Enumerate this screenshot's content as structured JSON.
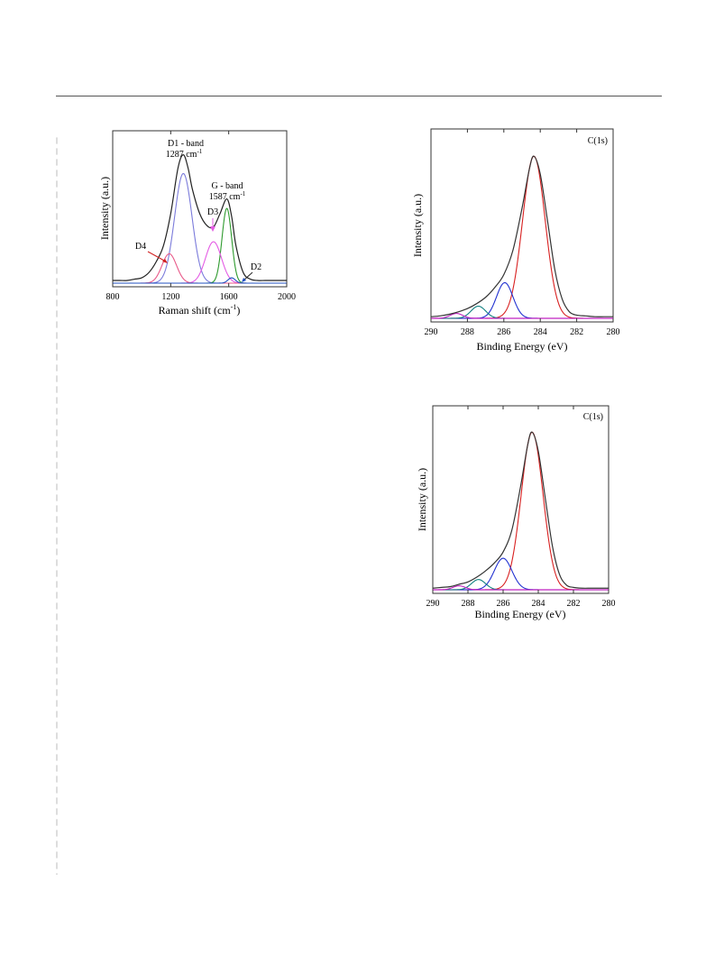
{
  "page": {
    "rule": true
  },
  "chart_data": [
    {
      "id": "raman",
      "type": "line",
      "xlabel": "Raman shift (cm",
      "xlabel_sup": "-1",
      "xlabel_end": ")",
      "ylabel": "Intensity (a.u.)",
      "xlim": [
        800,
        2000
      ],
      "xticks": [
        "800",
        "1200",
        "1600",
        "2000"
      ],
      "reversed_x": false,
      "annotations": {
        "d1_title": "D1 - band",
        "d1_value": "1287 cm",
        "d1_sup": "-1",
        "g_title": "G - band",
        "g_value": "1587 cm",
        "g_sup": "-1",
        "d3": "D3",
        "d4": "D4",
        "d2": "D2"
      },
      "components": [
        {
          "center": 1287,
          "amp": 0.82,
          "width": 60,
          "color": "#7b7bdb"
        },
        {
          "center": 1587,
          "amp": 0.56,
          "width": 33,
          "color": "#2e9a2e"
        },
        {
          "center": 1495,
          "amp": 0.31,
          "width": 55,
          "color": "#e45ce4"
        },
        {
          "center": 1190,
          "amp": 0.22,
          "width": 50,
          "color": "#e85a8a"
        },
        {
          "center": 1620,
          "amp": 0.04,
          "width": 25,
          "color": "#2050c0"
        }
      ],
      "envelope_color": "#222222",
      "x": [
        800,
        850,
        900,
        950,
        1000,
        1050,
        1100,
        1150,
        1200,
        1250,
        1287,
        1320,
        1350,
        1400,
        1450,
        1495,
        1540,
        1587,
        1620,
        1650,
        1700,
        1750,
        1800,
        1850,
        1900,
        1950,
        2000
      ],
      "y": [
        0.02,
        0.02,
        0.02,
        0.03,
        0.04,
        0.08,
        0.16,
        0.28,
        0.52,
        0.86,
        0.96,
        0.86,
        0.7,
        0.52,
        0.43,
        0.42,
        0.52,
        0.63,
        0.5,
        0.28,
        0.08,
        0.03,
        0.02,
        0.02,
        0.02,
        0.02,
        0.02
      ]
    },
    {
      "id": "xps1",
      "type": "line",
      "title": "C(1s)",
      "xlabel": "Binding Energy (eV)",
      "ylabel": "Intensity (a.u.)",
      "xlim": [
        290,
        280
      ],
      "xticks": [
        "290",
        "288",
        "286",
        "284",
        "282",
        "280"
      ],
      "reversed_x": true,
      "components": [
        {
          "center": 284.35,
          "amp": 1.0,
          "width": 0.62,
          "color": "#d82020"
        },
        {
          "center": 285.95,
          "amp": 0.22,
          "width": 0.45,
          "color": "#2030d0"
        },
        {
          "center": 287.4,
          "amp": 0.075,
          "width": 0.4,
          "color": "#108080"
        },
        {
          "center": 288.6,
          "amp": 0.03,
          "width": 0.35,
          "color": "#c020c0"
        }
      ],
      "baseline_color": "#c020c0",
      "envelope_color": "#333333",
      "x": [
        290,
        289.5,
        289,
        288.5,
        288,
        287.5,
        287,
        286.5,
        286,
        285.5,
        285,
        284.6,
        284.35,
        284,
        283.6,
        283.2,
        282.8,
        282.4,
        282,
        281.5,
        281,
        280.5,
        280
      ],
      "y": [
        0.01,
        0.015,
        0.025,
        0.04,
        0.06,
        0.09,
        0.13,
        0.19,
        0.27,
        0.42,
        0.68,
        0.92,
        1.0,
        0.89,
        0.6,
        0.3,
        0.12,
        0.04,
        0.02,
        0.015,
        0.01,
        0.01,
        0.01
      ]
    },
    {
      "id": "xps2",
      "type": "line",
      "title": "C(1s)",
      "xlabel": "Binding Energy (eV)",
      "ylabel": "Intensity (a.u.)",
      "xlim": [
        290,
        280
      ],
      "xticks": [
        "290",
        "288",
        "286",
        "284",
        "282",
        "280"
      ],
      "reversed_x": true,
      "components": [
        {
          "center": 284.35,
          "amp": 1.0,
          "width": 0.62,
          "color": "#d82020"
        },
        {
          "center": 286.0,
          "amp": 0.2,
          "width": 0.5,
          "color": "#2030d0"
        },
        {
          "center": 287.4,
          "amp": 0.065,
          "width": 0.4,
          "color": "#108080"
        },
        {
          "center": 288.5,
          "amp": 0.025,
          "width": 0.35,
          "color": "#c020c0"
        }
      ],
      "baseline_color": "#c020c0",
      "envelope_color": "#333333",
      "x": [
        290,
        289.5,
        289,
        288.5,
        288,
        287.5,
        287,
        286.5,
        286,
        285.5,
        285,
        284.6,
        284.35,
        284,
        283.6,
        283.2,
        282.8,
        282.4,
        282,
        281.5,
        281,
        280.5,
        280
      ],
      "y": [
        0.01,
        0.015,
        0.02,
        0.035,
        0.05,
        0.08,
        0.12,
        0.17,
        0.24,
        0.38,
        0.66,
        0.92,
        1.0,
        0.88,
        0.58,
        0.28,
        0.1,
        0.03,
        0.015,
        0.01,
        0.01,
        0.01,
        0.01
      ]
    }
  ]
}
